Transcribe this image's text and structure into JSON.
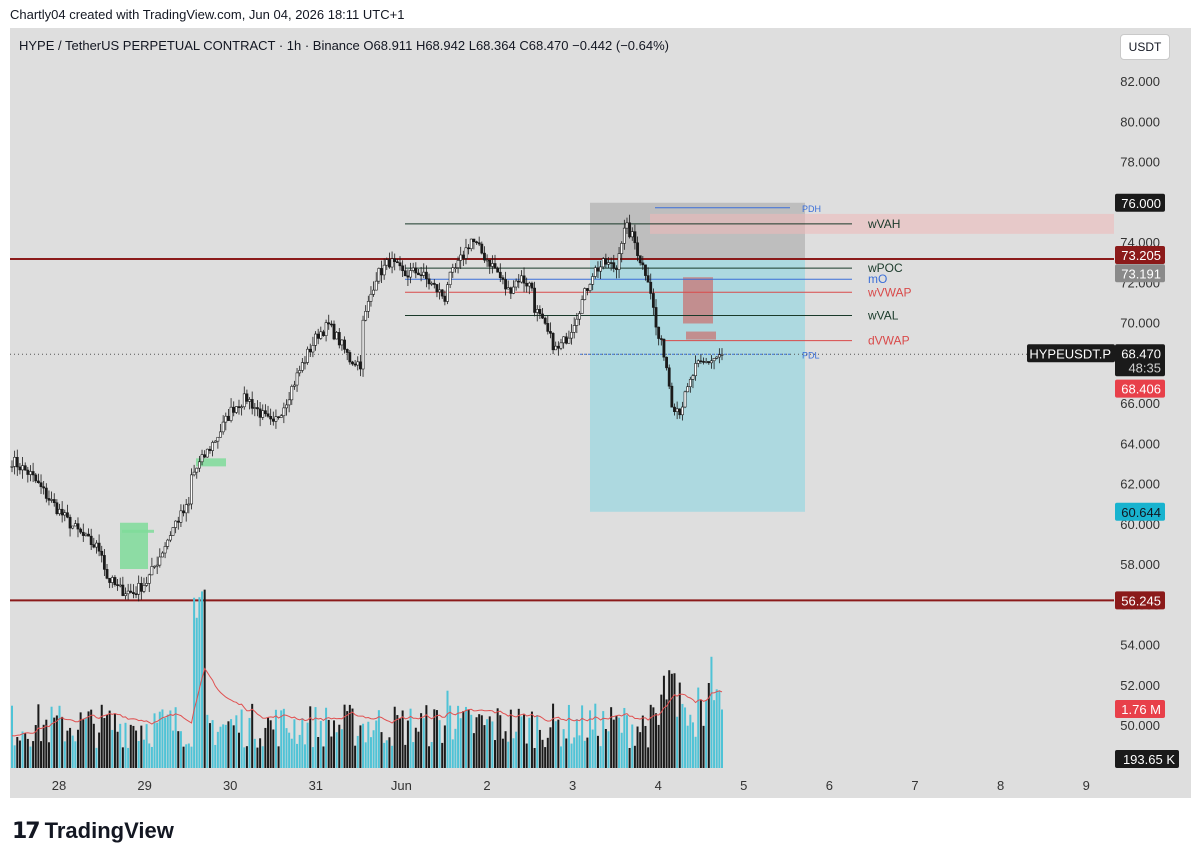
{
  "attribution": "Chartly04 created with TradingView.com, Jun 04, 2026 18:11 UTC+1",
  "header": {
    "symbol": "HYPE / TetherUS PERPETUAL CONTRACT · 1h · Binance",
    "open": "O68.911",
    "high": "H68.942",
    "low": "L68.364",
    "close": "C68.470",
    "change": "−0.442 (−0.64%)",
    "currency_button": "USDT"
  },
  "footer": {
    "brand": "TradingView",
    "logo_icon": "tradingview-logo-icon"
  },
  "colors": {
    "background": "#dedede",
    "candle": "#1a1a1a",
    "volume_up": "#4fc3d6",
    "volume_down": "#1a1a1a",
    "key_level": "#8b1a1a",
    "long_target_zone": "#a4d8e0",
    "stop_zone": "#a9a9a9",
    "value_line": "#1a3a2a",
    "vwap_line": "#d94a4a",
    "open_line": "#3b6fd8",
    "fvg_green": "#7fdc9a"
  },
  "chart_data": {
    "type": "candlestick",
    "timeframe": "1h",
    "x_tick_labels": [
      "28",
      "29",
      "30",
      "31",
      "Jun",
      "2",
      "3",
      "4",
      "5",
      "6",
      "7",
      "8",
      "9"
    ],
    "y_tick_labels": [
      "82.000",
      "80.000",
      "78.000",
      "76.000",
      "74.000",
      "72.000",
      "70.000",
      "68.000",
      "66.000",
      "64.000",
      "62.000",
      "60.000",
      "58.000",
      "56.000",
      "54.000",
      "52.000",
      "50.000"
    ],
    "ylim": [
      48.8,
      83.9
    ],
    "ohlc_path": [
      [
        "28",
        63.2
      ],
      [
        "28",
        62.5
      ],
      [
        "28",
        61.3
      ],
      [
        "28",
        60.2
      ],
      [
        "28",
        59.3
      ],
      [
        "28",
        58.6
      ],
      [
        "29",
        57.5
      ],
      [
        "29",
        56.8
      ],
      [
        "29",
        56.6
      ],
      [
        "29",
        57.2
      ],
      [
        "29",
        58.6
      ],
      [
        "29",
        60.1
      ],
      [
        "29",
        61.0
      ],
      [
        "30",
        62.3
      ],
      [
        "30",
        63.4
      ],
      [
        "30",
        64.5
      ],
      [
        "30",
        65.8
      ],
      [
        "30",
        66.3
      ],
      [
        "30",
        65.5
      ],
      [
        "30",
        64.8
      ],
      [
        "31",
        65.2
      ],
      [
        "31",
        66.2
      ],
      [
        "31",
        67.4
      ],
      [
        "31",
        68.5
      ],
      [
        "31",
        69.5
      ],
      [
        "31",
        69.9
      ],
      [
        "31",
        69.1
      ],
      [
        "31",
        68.2
      ],
      [
        "31",
        68.0
      ],
      [
        "Jun",
        69.7
      ],
      [
        "Jun",
        72.3
      ],
      [
        "Jun",
        73.1
      ],
      [
        "Jun",
        72.4
      ],
      [
        "Jun",
        72.6
      ],
      [
        "Jun",
        71.9
      ],
      [
        "Jun",
        71.2
      ],
      [
        "2",
        72.0
      ],
      [
        "2",
        73.0
      ],
      [
        "2",
        74.2
      ],
      [
        "2",
        73.4
      ],
      [
        "2",
        72.7
      ],
      [
        "2",
        71.6
      ],
      [
        "2",
        72.3
      ],
      [
        "2",
        71.8
      ],
      [
        "3",
        71.0
      ],
      [
        "3",
        69.8
      ],
      [
        "3",
        68.6
      ],
      [
        "3",
        69.5
      ],
      [
        "3",
        71.0
      ],
      [
        "3",
        72.6
      ],
      [
        "3",
        73.0
      ],
      [
        "3",
        72.7
      ],
      [
        "4",
        73.6
      ],
      [
        "4",
        74.8
      ],
      [
        "4",
        74.2
      ],
      [
        "4",
        73.0
      ],
      [
        "4",
        72.2
      ],
      [
        "4",
        69.5
      ],
      [
        "4",
        68.5
      ],
      [
        "4",
        66.0
      ],
      [
        "4",
        65.7
      ],
      [
        "4",
        66.7
      ],
      [
        "4",
        67.8
      ],
      [
        "4",
        68.47
      ]
    ],
    "levels": [
      {
        "name": "wVAH",
        "value": 74.95
      },
      {
        "name": "wPOC",
        "value": 72.75
      },
      {
        "name": "mO",
        "value": 72.2
      },
      {
        "name": "wVWAP",
        "value": 71.55
      },
      {
        "name": "wVAL",
        "value": 70.4
      },
      {
        "name": "dVWAP",
        "value": 69.15
      },
      {
        "name": "PDH",
        "value": 75.75
      },
      {
        "name": "PDL",
        "value": 68.47
      }
    ],
    "price_labels": [
      {
        "text": "76.000",
        "value": 76.0
      },
      {
        "text": "73.205",
        "value": 73.205
      },
      {
        "text": "73.191",
        "value": 73.191
      },
      {
        "text": "HYPEUSDT.P",
        "value": 68.47
      },
      {
        "text": "68.470",
        "value": 68.47
      },
      {
        "text": "48:35",
        "value": 68.47
      },
      {
        "text": "68.406",
        "value": 68.406
      },
      {
        "text": "60.644",
        "value": 60.644
      },
      {
        "text": "56.245",
        "value": 56.245
      }
    ],
    "key_levels": [
      73.205,
      56.245
    ],
    "position": {
      "entry": 73.191,
      "stop": 76.0,
      "target": 60.644
    },
    "volume_labels": {
      "ma": "1.76 M",
      "last": "193.65 K"
    }
  }
}
